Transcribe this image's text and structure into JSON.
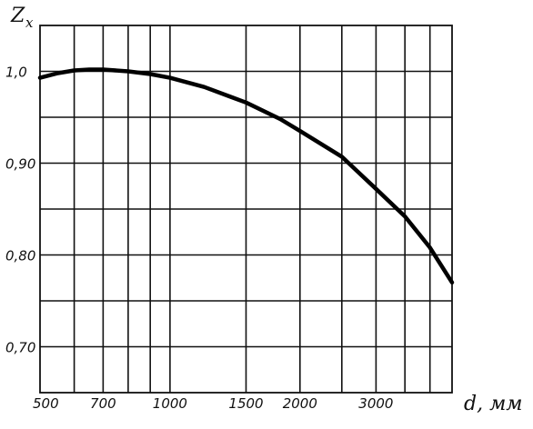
{
  "chart_data": {
    "type": "line",
    "xlabel": "d, мм",
    "ylabel_main": "Z",
    "ylabel_sub": "x",
    "xscale": "log",
    "xlim": [
      500,
      4500
    ],
    "ylim": [
      0.65,
      1.05
    ],
    "grid": true,
    "x_ticks": [
      {
        "value": 500,
        "label": "500"
      },
      {
        "value": 700,
        "label": "700"
      },
      {
        "value": 1000,
        "label": "1000"
      },
      {
        "value": 1500,
        "label": "1500"
      },
      {
        "value": 2000,
        "label": "2000"
      },
      {
        "value": 3000,
        "label": "3000"
      }
    ],
    "x_minor_grid": [
      600,
      800,
      900,
      2500,
      3500,
      4000
    ],
    "y_ticks": [
      {
        "value": 1.0,
        "label": "1,0"
      },
      {
        "value": 0.9,
        "label": "0,90"
      },
      {
        "value": 0.8,
        "label": "0,80"
      },
      {
        "value": 0.7,
        "label": "0,70"
      }
    ],
    "y_minor_grid": [
      0.95,
      0.85,
      0.75
    ],
    "series": [
      {
        "x": [
          500,
          550,
          600,
          650,
          700,
          800,
          900,
          1000,
          1200,
          1500,
          1800,
          2000,
          2500,
          3000,
          3500,
          4000,
          4500
        ],
        "values": [
          0.993,
          0.998,
          1.001,
          1.002,
          1.002,
          1.0,
          0.997,
          0.993,
          0.983,
          0.966,
          0.948,
          0.935,
          0.907,
          0.872,
          0.842,
          0.808,
          0.77
        ]
      }
    ]
  }
}
